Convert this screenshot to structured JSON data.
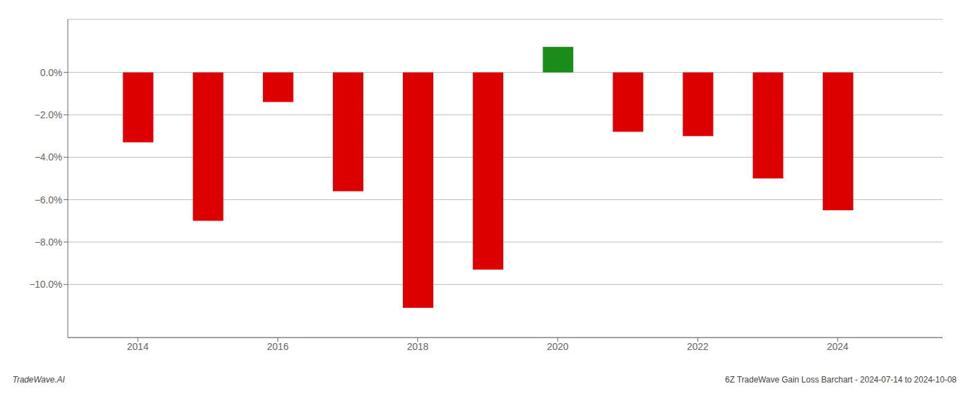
{
  "chart_data": {
    "type": "bar",
    "x": [
      2014,
      2015,
      2016,
      2017,
      2018,
      2019,
      2020,
      2021,
      2022,
      2023,
      2024
    ],
    "values": [
      -3.3,
      -7.0,
      -1.4,
      -5.6,
      -11.1,
      -9.3,
      1.2,
      -2.8,
      -3.0,
      -5.0,
      -6.5
    ],
    "colors": [
      "#dd0000",
      "#dd0000",
      "#dd0000",
      "#dd0000",
      "#dd0000",
      "#dd0000",
      "#1a8c1a",
      "#dd0000",
      "#dd0000",
      "#dd0000",
      "#dd0000"
    ],
    "xlim": [
      2013.0,
      2025.5
    ],
    "xticks": [
      2014,
      2016,
      2018,
      2020,
      2022,
      2024
    ],
    "ylim": [
      -12.5,
      2.5
    ],
    "yticks": [
      {
        "value": 0.0,
        "label": "0.0%"
      },
      {
        "value": -2.0,
        "label": "−2.0%"
      },
      {
        "value": -4.0,
        "label": "−4.0%"
      },
      {
        "value": -6.0,
        "label": "−6.0%"
      },
      {
        "value": -8.0,
        "label": "−8.0%"
      },
      {
        "value": -10.0,
        "label": "−10.0%"
      }
    ],
    "grid": true,
    "annotations": [
      "TradeWave.AI",
      "6Z TradeWave Gain Loss Barchart - 2024-07-14 to 2024-10-08"
    ]
  }
}
